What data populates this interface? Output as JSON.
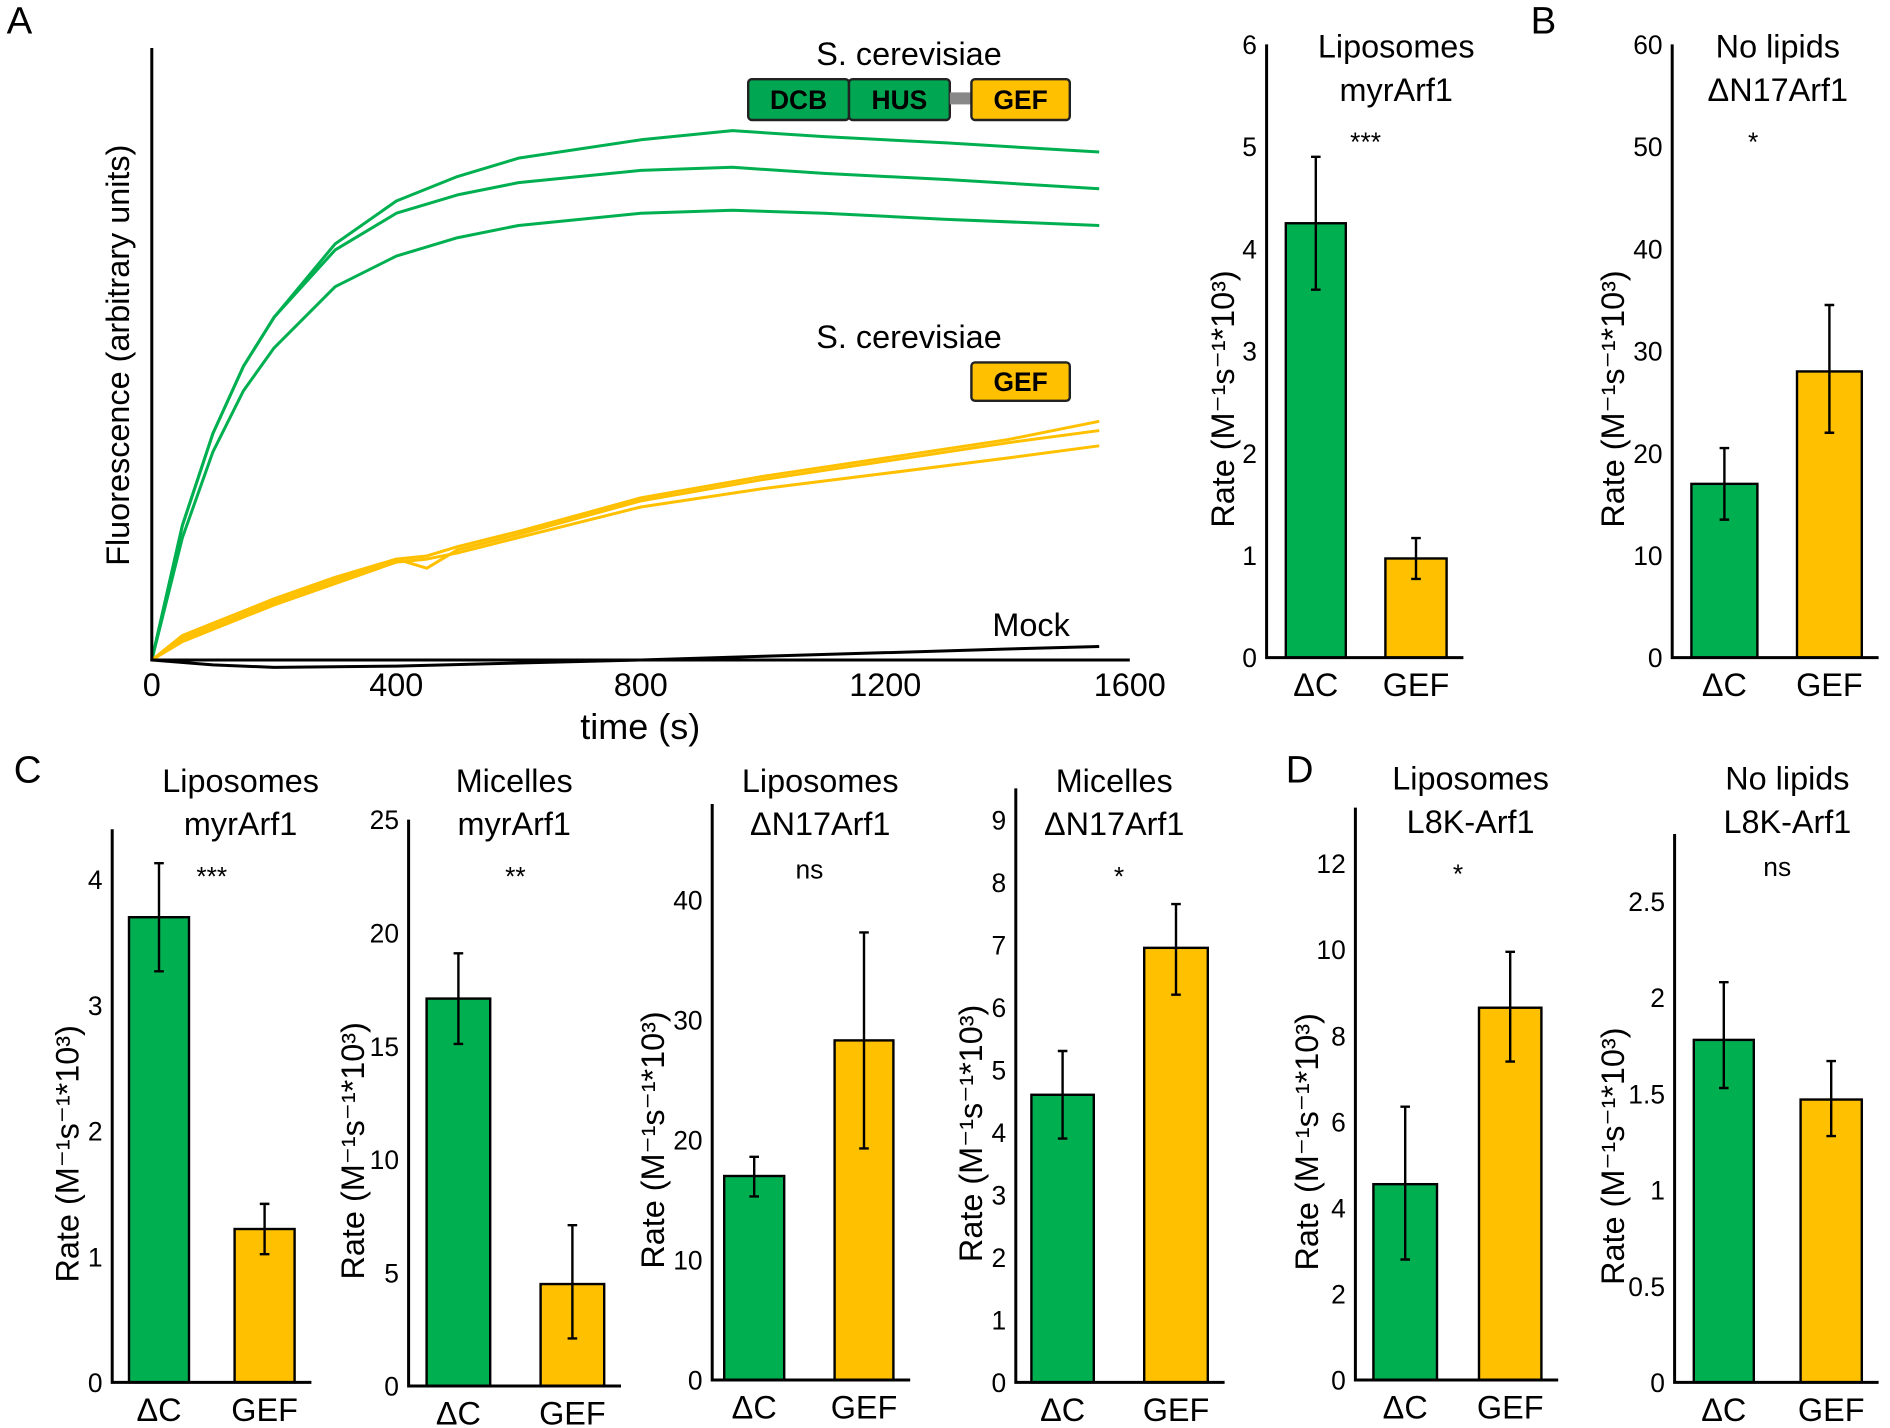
{
  "colors": {
    "green": "#00b050",
    "yellow": "#ffc000",
    "black": "#000000",
    "linker": "#888888"
  },
  "panel_letters": [
    "A",
    "B",
    "C",
    "D"
  ],
  "legend": {
    "species_1": "S. cerevisiae",
    "domains_1": [
      "DCB",
      "HUS",
      "GEF"
    ],
    "species_2": "S. cerevisiae",
    "domains_2": [
      "GEF"
    ],
    "mock": "Mock"
  },
  "chart_data": [
    {
      "id": "A-curves",
      "type": "line",
      "xlabel": "time (s)",
      "ylabel": "Fluorescence (arbitrary units)",
      "xlim": [
        0,
        1600
      ],
      "xticks": [
        0,
        400,
        800,
        1200,
        1600
      ],
      "ylim": [
        0,
        100
      ],
      "grid": false,
      "series": [
        {
          "color": "green",
          "x": [
            0,
            50,
            100,
            150,
            200,
            300,
            400,
            500,
            600,
            800,
            950,
            1100,
            1300,
            1550
          ],
          "y": [
            0,
            22,
            37,
            48,
            56,
            68,
            75,
            79,
            82,
            85,
            86.5,
            85.5,
            84.5,
            83
          ]
        },
        {
          "color": "green",
          "x": [
            0,
            50,
            100,
            150,
            200,
            300,
            400,
            500,
            600,
            800,
            950,
            1100,
            1300,
            1550
          ],
          "y": [
            0,
            22,
            37,
            48,
            56,
            67,
            73,
            76,
            78,
            80,
            80.5,
            79.5,
            78.5,
            77
          ]
        },
        {
          "color": "green",
          "x": [
            0,
            50,
            100,
            150,
            200,
            300,
            400,
            500,
            600,
            800,
            950,
            1100,
            1300,
            1550
          ],
          "y": [
            0,
            20,
            34,
            44,
            51,
            61,
            66,
            69,
            71,
            73,
            73.5,
            73,
            72,
            71
          ]
        },
        {
          "color": "yellow",
          "x": [
            0,
            50,
            100,
            200,
            300,
            400,
            450,
            500,
            600,
            800,
            1000,
            1200,
            1400,
            1550
          ],
          "y": [
            0,
            4,
            6,
            10,
            13.5,
            16.5,
            17,
            18.5,
            21,
            26.5,
            30,
            33,
            36,
            39
          ]
        },
        {
          "color": "yellow",
          "x": [
            0,
            50,
            100,
            200,
            300,
            400,
            450,
            500,
            600,
            800,
            1000,
            1200,
            1400,
            1550
          ],
          "y": [
            0,
            3.5,
            5.5,
            9.5,
            13,
            16.5,
            15,
            18,
            20.5,
            26,
            29.5,
            32.5,
            35.5,
            37.5
          ]
        },
        {
          "color": "yellow",
          "x": [
            0,
            50,
            100,
            200,
            300,
            400,
            450,
            500,
            600,
            800,
            1000,
            1200,
            1400,
            1550
          ],
          "y": [
            0,
            3,
            5,
            9,
            12.5,
            16,
            16.5,
            17.5,
            20,
            25,
            28,
            30.5,
            33,
            35
          ]
        },
        {
          "color": "black",
          "x": [
            0,
            100,
            200,
            400,
            600,
            800,
            1000,
            1200,
            1400,
            1550
          ],
          "y": [
            0,
            -0.8,
            -1.2,
            -1,
            -0.5,
            0,
            0.6,
            1.2,
            1.8,
            2.2
          ]
        }
      ]
    },
    {
      "id": "A-bars",
      "type": "bar",
      "title": [
        "Liposomes",
        "myrArf1"
      ],
      "significance": "***",
      "ylabel": "Rate (M⁻¹s⁻¹*10³)",
      "ylim": [
        0,
        6
      ],
      "yticks": [
        0,
        1,
        2,
        3,
        4,
        5,
        6
      ],
      "categories": [
        "ΔC",
        "GEF"
      ],
      "values": [
        4.25,
        0.97
      ],
      "errors": [
        [
          3.6,
          4.9
        ],
        [
          0.77,
          1.17
        ]
      ]
    },
    {
      "id": "B",
      "type": "bar",
      "title": [
        "No lipids",
        "ΔN17Arf1"
      ],
      "significance": "*",
      "ylabel": "Rate (M⁻¹s⁻¹*10³)",
      "ylim": [
        0,
        60
      ],
      "yticks": [
        0,
        10,
        20,
        30,
        40,
        50,
        60
      ],
      "categories": [
        "ΔC",
        "GEF"
      ],
      "values": [
        17,
        28
      ],
      "errors": [
        [
          13.5,
          20.5
        ],
        [
          22,
          34.5
        ]
      ]
    },
    {
      "id": "C1",
      "type": "bar",
      "title": [
        "Liposomes",
        "myrArf1"
      ],
      "significance": "***",
      "ylabel": "Rate (M⁻¹s⁻¹*10³)",
      "ylim": [
        0,
        4.4
      ],
      "yticks": [
        0,
        1,
        2,
        3,
        4
      ],
      "categories": [
        "ΔC",
        "GEF"
      ],
      "values": [
        3.7,
        1.22
      ],
      "errors": [
        [
          3.27,
          4.13
        ],
        [
          1.02,
          1.42
        ]
      ]
    },
    {
      "id": "C2",
      "type": "bar",
      "title": [
        "Micelles",
        "myrArf1"
      ],
      "significance": "**",
      "ylabel": "Rate (M⁻¹s⁻¹*10³)",
      "ylim": [
        0,
        25
      ],
      "yticks": [
        0,
        5,
        10,
        15,
        20,
        25
      ],
      "categories": [
        "ΔC",
        "GEF"
      ],
      "values": [
        17.1,
        4.5
      ],
      "errors": [
        [
          15.1,
          19.1
        ],
        [
          2.1,
          7.1
        ]
      ]
    },
    {
      "id": "C3",
      "type": "bar",
      "title": [
        "Liposomes",
        "ΔN17Arf1"
      ],
      "significance": "ns",
      "ylabel": "Rate (M⁻¹s⁻¹*10³)",
      "ylim": [
        0,
        48
      ],
      "yticks": [
        0,
        10,
        20,
        30,
        40
      ],
      "categories": [
        "ΔC",
        "GEF"
      ],
      "values": [
        17,
        28.3
      ],
      "errors": [
        [
          15.3,
          18.6
        ],
        [
          19.3,
          37.3
        ]
      ]
    },
    {
      "id": "C4",
      "type": "bar",
      "title": [
        "Micelles",
        "ΔN17Arf1"
      ],
      "significance": "*",
      "ylabel": "Rate (M⁻¹s⁻¹*10³)",
      "ylim": [
        0,
        9.5
      ],
      "yticks": [
        0,
        1,
        2,
        3,
        4,
        5,
        6,
        7,
        8,
        9
      ],
      "categories": [
        "ΔC",
        "GEF"
      ],
      "values": [
        4.6,
        6.95
      ],
      "errors": [
        [
          3.9,
          5.3
        ],
        [
          6.2,
          7.65
        ]
      ]
    },
    {
      "id": "D1",
      "type": "bar",
      "title": [
        "Liposomes",
        "L8K-Arf1"
      ],
      "significance": "*",
      "ylabel": "Rate (M⁻¹s⁻¹*10³)",
      "ylim": [
        0,
        13.3
      ],
      "yticks": [
        0,
        2,
        4,
        6,
        8,
        10,
        12
      ],
      "categories": [
        "ΔC",
        "GEF"
      ],
      "values": [
        4.55,
        8.65
      ],
      "errors": [
        [
          2.8,
          6.35
        ],
        [
          7.4,
          9.95
        ]
      ]
    },
    {
      "id": "D2",
      "type": "bar",
      "title": [
        "No lipids",
        "L8K-Arf1"
      ],
      "significance": "ns",
      "ylabel": "Rate (M⁻¹s⁻¹*10³)",
      "ylim": [
        0,
        2.85
      ],
      "yticks": [
        0,
        0.5,
        1,
        1.5,
        2,
        2.5
      ],
      "categories": [
        "ΔC",
        "GEF"
      ],
      "values": [
        1.78,
        1.47
      ],
      "errors": [
        [
          1.53,
          2.08
        ],
        [
          1.28,
          1.67
        ]
      ]
    }
  ]
}
